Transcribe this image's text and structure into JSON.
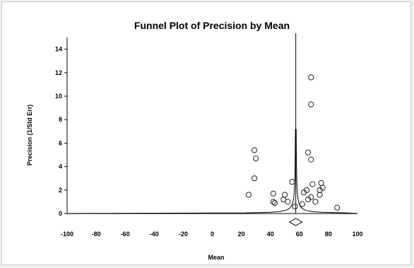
{
  "chart_data": {
    "type": "scatter",
    "title": "Funnel Plot of Precision by Mean",
    "xlabel": "Mean",
    "ylabel": "Precision (1/Std Err)",
    "xlim": [
      -100,
      100
    ],
    "ylim": [
      0,
      15
    ],
    "x_ticks": [
      -100,
      -80,
      -60,
      -40,
      -20,
      0,
      20,
      40,
      60,
      80,
      100
    ],
    "y_ticks": [
      0,
      2,
      4,
      6,
      8,
      10,
      12,
      14
    ],
    "x_tick_labels": [
      "-100",
      "-80",
      "-60",
      "-40",
      "-20",
      "0",
      "20",
      "40",
      "60",
      "80",
      "100"
    ],
    "y_tick_labels": [
      "0",
      "2",
      "4",
      "6",
      "8",
      "10",
      "12",
      "14"
    ],
    "grid": false,
    "summary_mean": 57.5,
    "points": [
      {
        "x": 29,
        "y": 5.4
      },
      {
        "x": 30,
        "y": 4.7
      },
      {
        "x": 29,
        "y": 3.0
      },
      {
        "x": 25,
        "y": 1.6
      },
      {
        "x": 42,
        "y": 1.7
      },
      {
        "x": 42,
        "y": 1.0
      },
      {
        "x": 43,
        "y": 0.9
      },
      {
        "x": 49,
        "y": 1.2
      },
      {
        "x": 50,
        "y": 1.6
      },
      {
        "x": 52,
        "y": 1.0
      },
      {
        "x": 55,
        "y": 2.7
      },
      {
        "x": 57,
        "y": 0.6
      },
      {
        "x": 62,
        "y": 0.8
      },
      {
        "x": 63,
        "y": 1.8
      },
      {
        "x": 65,
        "y": 2.0
      },
      {
        "x": 66,
        "y": 1.2
      },
      {
        "x": 68,
        "y": 1.4
      },
      {
        "x": 69,
        "y": 2.5
      },
      {
        "x": 71,
        "y": 1.0
      },
      {
        "x": 74,
        "y": 1.6
      },
      {
        "x": 74,
        "y": 2.0
      },
      {
        "x": 75,
        "y": 2.6
      },
      {
        "x": 76,
        "y": 2.2
      },
      {
        "x": 66,
        "y": 5.2
      },
      {
        "x": 68,
        "y": 4.6
      },
      {
        "x": 68,
        "y": 9.3
      },
      {
        "x": 68,
        "y": 11.6
      },
      {
        "x": 86,
        "y": 0.5
      }
    ]
  }
}
